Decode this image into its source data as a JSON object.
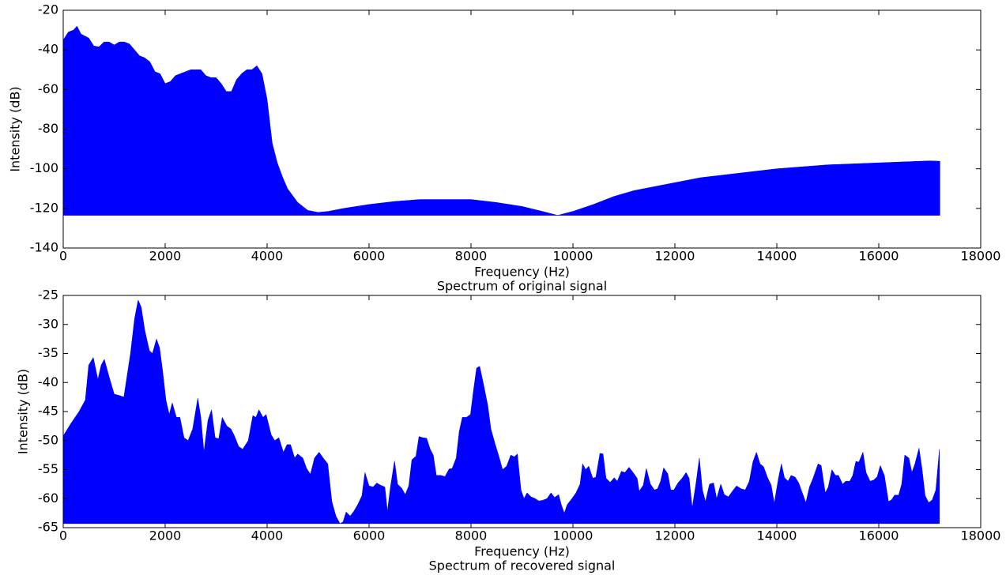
{
  "chart_data": [
    {
      "type": "area",
      "title": "Spectrum of original signal",
      "xlabel": "Frequency (Hz)",
      "ylabel": "Intensity (dB)",
      "color": "#0000ff",
      "xlim": [
        0,
        18000
      ],
      "ylim": [
        -140,
        -20
      ],
      "xticks": [
        0,
        2000,
        4000,
        6000,
        8000,
        10000,
        12000,
        14000,
        16000,
        18000
      ],
      "yticks": [
        -140,
        -120,
        -100,
        -80,
        -60,
        -40,
        -20
      ],
      "x": [
        0,
        100,
        200,
        270,
        350,
        500,
        600,
        700,
        800,
        900,
        1000,
        1100,
        1200,
        1300,
        1400,
        1500,
        1600,
        1700,
        1800,
        1900,
        2000,
        2100,
        2200,
        2300,
        2400,
        2500,
        2600,
        2700,
        2800,
        2900,
        3000,
        3100,
        3200,
        3300,
        3400,
        3500,
        3600,
        3700,
        3800,
        3900,
        4000,
        4100,
        4200,
        4300,
        4400,
        4600,
        4800,
        5000,
        5200,
        5500,
        6000,
        6500,
        7000,
        7500,
        8000,
        8500,
        9000,
        9400,
        9700,
        10000,
        10400,
        10800,
        11200,
        11600,
        12000,
        12500,
        13000,
        13500,
        14000,
        14500,
        15000,
        15500,
        16000,
        16500,
        17000,
        17200
      ],
      "values": [
        -35,
        -31,
        -30,
        -28,
        -32,
        -34,
        -38,
        -38.5,
        -36,
        -36,
        -37.5,
        -36,
        -36,
        -37,
        -40,
        -43,
        -44,
        -46,
        -51,
        -52,
        -57,
        -56,
        -53,
        -52,
        -51,
        -50,
        -50,
        -50,
        -53,
        -54,
        -54,
        -57,
        -61,
        -61,
        -55,
        -52,
        -50,
        -50,
        -48,
        -52,
        -65,
        -87,
        -97,
        -104,
        -110,
        -117,
        -121,
        -122,
        -121.5,
        -120,
        -118,
        -116.5,
        -115.5,
        -115.5,
        -115.5,
        -117,
        -119,
        -121.5,
        -123.5,
        -121.5,
        -118,
        -114,
        -111,
        -109,
        -107,
        -104.5,
        -103,
        -101.5,
        -100,
        -99,
        -98,
        -97.5,
        -97,
        -96.5,
        -96,
        -96.2
      ]
    },
    {
      "type": "area",
      "title": "Spectrum of recovered signal",
      "xlabel": "Frequency (Hz)",
      "ylabel": "Intensity (dB)",
      "color": "#0000ff",
      "xlim": [
        0,
        18000
      ],
      "ylim": [
        -65,
        -25
      ],
      "xticks": [
        0,
        2000,
        4000,
        6000,
        8000,
        10000,
        12000,
        14000,
        16000,
        18000
      ],
      "yticks": [
        -65,
        -60,
        -55,
        -50,
        -45,
        -40,
        -35,
        -30,
        -25
      ],
      "x": [
        0,
        155,
        310,
        434,
        500,
        590,
        680,
        745,
        806,
        900,
        1000,
        1085,
        1190,
        1320,
        1400,
        1470,
        1530,
        1600,
        1690,
        1750,
        1830,
        1890,
        1950,
        2015,
        2080,
        2140,
        2220,
        2290,
        2370,
        2450,
        2540,
        2640,
        2700,
        2760,
        2840,
        2910,
        2980,
        3050,
        3120,
        3210,
        3290,
        3360,
        3440,
        3520,
        3630,
        3720,
        3780,
        3840,
        3920,
        3980,
        4080,
        4150,
        4230,
        4320,
        4390,
        4460,
        4540,
        4600,
        4700,
        4775,
        4850,
        4930,
        5020,
        5100,
        5190,
        5270,
        5350,
        5430,
        5490,
        5550,
        5630,
        5700,
        5780,
        5860,
        5920,
        6000,
        6080,
        6150,
        6230,
        6310,
        6360,
        6420,
        6500,
        6560,
        6640,
        6710,
        6780,
        6840,
        6920,
        6980,
        7050,
        7130,
        7200,
        7260,
        7320,
        7410,
        7490,
        7570,
        7630,
        7710,
        7770,
        7830,
        7910,
        7990,
        8050,
        8110,
        8170,
        8250,
        8330,
        8390,
        8470,
        8540,
        8620,
        8700,
        8780,
        8850,
        8910,
        8980,
        9040,
        9100,
        9180,
        9260,
        9330,
        9400,
        9490,
        9570,
        9640,
        9720,
        9770,
        9830,
        9890,
        9980,
        10060,
        10140,
        10190,
        10250,
        10310,
        10390,
        10450,
        10530,
        10590,
        10650,
        10730,
        10810,
        10870,
        10950,
        11020,
        11100,
        11180,
        11260,
        11300,
        11380,
        11440,
        11520,
        11600,
        11660,
        11720,
        11780,
        11860,
        11920,
        11980,
        12060,
        12140,
        12220,
        12280,
        12340,
        12420,
        12480,
        12540,
        12600,
        12680,
        12760,
        12820,
        12900,
        12970,
        13050,
        13130,
        13210,
        13300,
        13380,
        13460,
        13530,
        13600,
        13670,
        13740,
        13810,
        13890,
        13950,
        14030,
        14090,
        14150,
        14220,
        14280,
        14360,
        14430,
        14500,
        14570,
        14640,
        14710,
        14810,
        14870,
        14950,
        15010,
        15080,
        15150,
        15210,
        15290,
        15350,
        15430,
        15490,
        15550,
        15610,
        15690,
        15750,
        15830,
        15900,
        15970,
        16030,
        16110,
        16190,
        16250,
        16310,
        16390,
        16450,
        16510,
        16590,
        16650,
        16710,
        16790,
        16850,
        16910,
        16980,
        17050,
        17120,
        17190
      ],
      "values": [
        -49.2,
        -47,
        -45,
        -43,
        -37,
        -35.7,
        -39.5,
        -37,
        -36,
        -39,
        -42,
        -42.2,
        -42.5,
        -35,
        -29,
        -25.8,
        -27,
        -31,
        -34.5,
        -35,
        -32.5,
        -34,
        -38,
        -43,
        -45.5,
        -43.5,
        -46,
        -46,
        -49.5,
        -50,
        -48,
        -42.7,
        -46,
        -52,
        -46.5,
        -44.7,
        -49.5,
        -49.7,
        -46,
        -47.5,
        -48,
        -49.2,
        -51,
        -51.5,
        -50,
        -45.7,
        -46,
        -44.7,
        -46,
        -45.5,
        -49,
        -50,
        -49.5,
        -52,
        -50.7,
        -50.7,
        -53,
        -52.3,
        -53,
        -54.8,
        -55.8,
        -53,
        -52,
        -53,
        -54,
        -60.5,
        -63,
        -64.3,
        -64,
        -62.3,
        -63,
        -62.2,
        -61,
        -59.5,
        -55.5,
        -57.8,
        -58,
        -57.3,
        -57.7,
        -58,
        -62.2,
        -58,
        -53.5,
        -57.5,
        -58.2,
        -59.3,
        -57.8,
        -53.3,
        -52.7,
        -49.3,
        -49.5,
        -49.6,
        -51.5,
        -52.5,
        -56,
        -56,
        -56.2,
        -54.9,
        -54.8,
        -53,
        -48.4,
        -46,
        -46,
        -45.5,
        -41.3,
        -37.5,
        -37.2,
        -40.5,
        -44,
        -48,
        -50.5,
        -52.5,
        -55,
        -54.4,
        -52.5,
        -52.8,
        -52.3,
        -58.5,
        -60,
        -59,
        -59.7,
        -60,
        -60.4,
        -60.3,
        -60,
        -59,
        -59.8,
        -59.3,
        -61,
        -62.5,
        -61,
        -60,
        -59,
        -57.5,
        -54,
        -55,
        -54.4,
        -56.5,
        -56.3,
        -52.2,
        -52.3,
        -56.5,
        -57.2,
        -56.4,
        -57,
        -55.3,
        -55.5,
        -54.6,
        -55.5,
        -56.5,
        -58.7,
        -57.7,
        -54.8,
        -57.5,
        -58.5,
        -58.3,
        -57,
        -54.7,
        -55.7,
        -58.5,
        -58.5,
        -57.3,
        -56.5,
        -55.5,
        -56.5,
        -61.6,
        -57,
        -53,
        -58.5,
        -60.5,
        -57.5,
        -57.3,
        -60,
        -57.5,
        -59.3,
        -59.7,
        -58.7,
        -57.8,
        -58.3,
        -58.5,
        -57,
        -53.7,
        -52,
        -54,
        -54.5,
        -56.2,
        -57.7,
        -60.8,
        -56.6,
        -54,
        -56.4,
        -57,
        -56,
        -56.3,
        -57.3,
        -59,
        -60.7,
        -58,
        -56.5,
        -54,
        -54.3,
        -59,
        -58,
        -55,
        -56,
        -56,
        -57.5,
        -57,
        -57,
        -56,
        -53.6,
        -53.7,
        -52,
        -55.5,
        -57,
        -56.8,
        -56.2,
        -54.3,
        -56,
        -60.5,
        -60.2,
        -59.4,
        -59.4,
        -57.5,
        -52.5,
        -53,
        -55.5,
        -54,
        -51.3,
        -55,
        -59.5,
        -60.7,
        -60.2,
        -58.5,
        -51.5
      ]
    }
  ]
}
